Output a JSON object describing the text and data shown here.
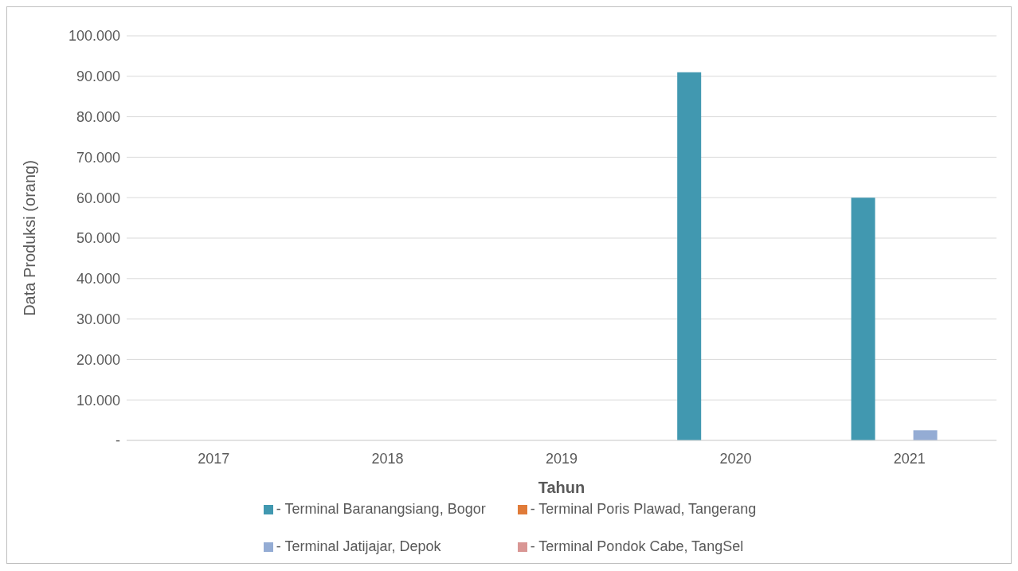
{
  "chart_data": {
    "type": "bar",
    "xlabel": "Tahun",
    "ylabel": "Data Produksi (orang)",
    "categories": [
      "2017",
      "2018",
      "2019",
      "2020",
      "2021"
    ],
    "series": [
      {
        "name": "- Terminal Baranangsiang, Bogor",
        "color": "#4198b0",
        "values": [
          null,
          null,
          null,
          91000,
          60000
        ]
      },
      {
        "name": "- Terminal Poris Plawad, Tangerang",
        "color": "#e07b39",
        "values": [
          null,
          null,
          null,
          null,
          null
        ]
      },
      {
        "name": "- Terminal Jatijajar, Depok",
        "color": "#94acd4",
        "values": [
          null,
          null,
          null,
          null,
          2500
        ]
      },
      {
        "name": "- Terminal Pondok Cabe, TangSel",
        "color": "#d99694",
        "values": [
          null,
          null,
          null,
          null,
          null
        ]
      }
    ],
    "ylim": [
      0,
      100000
    ],
    "yticks": [
      {
        "value": 0,
        "label": "-"
      },
      {
        "value": 10000,
        "label": "10.000"
      },
      {
        "value": 20000,
        "label": "20.000"
      },
      {
        "value": 30000,
        "label": "30.000"
      },
      {
        "value": 40000,
        "label": "40.000"
      },
      {
        "value": 50000,
        "label": "50.000"
      },
      {
        "value": 60000,
        "label": "60.000"
      },
      {
        "value": 70000,
        "label": "70.000"
      },
      {
        "value": 80000,
        "label": "80.000"
      },
      {
        "value": 90000,
        "label": "90.000"
      },
      {
        "value": 100000,
        "label": "100.000"
      }
    ],
    "grid": "y",
    "legend": "bottom"
  }
}
